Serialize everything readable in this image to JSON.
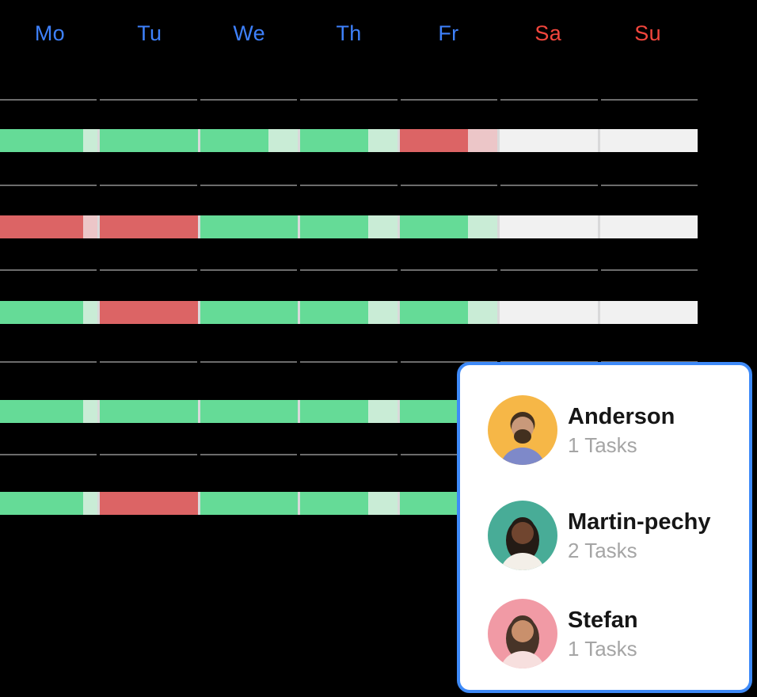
{
  "colors": {
    "background": "#000000",
    "weekday_workday": "#3E81FC",
    "weekday_weekend": "#F2463D",
    "separator": "#6C6C6C",
    "bar_divider": "#D9D9DA",
    "done": "#65DB97",
    "done_light": "#C9ECD6",
    "missed": "#DC6465",
    "missed_light": "#ECC6C8",
    "empty": "#F1F1F1",
    "tooltip_border": "#3E8AF8",
    "tooltip_bg": "#FFFFFF",
    "member_name": "#161616",
    "member_tasks": "#A5A5A5"
  },
  "header": {
    "days": [
      {
        "label": "Mo",
        "kind": "workday"
      },
      {
        "label": "Tu",
        "kind": "workday"
      },
      {
        "label": "We",
        "kind": "workday"
      },
      {
        "label": "Th",
        "kind": "workday"
      },
      {
        "label": "Fr",
        "kind": "workday"
      },
      {
        "label": "Sa",
        "kind": "weekend"
      },
      {
        "label": "Su",
        "kind": "weekend"
      }
    ]
  },
  "weeks": [
    {
      "id": "week-1",
      "days": [
        {
          "day": "Mo",
          "parts": [
            {
              "state": "done",
              "frac": 0.85
            },
            {
              "state": "done_light",
              "frac": 0.15
            }
          ]
        },
        {
          "day": "Tu",
          "parts": [
            {
              "state": "done",
              "frac": 1
            }
          ]
        },
        {
          "day": "We",
          "parts": [
            {
              "state": "done",
              "frac": 0.7
            },
            {
              "state": "done_light",
              "frac": 0.3
            }
          ]
        },
        {
          "day": "Th",
          "parts": [
            {
              "state": "done",
              "frac": 0.7
            },
            {
              "state": "done_light",
              "frac": 0.3
            }
          ]
        },
        {
          "day": "Fr",
          "parts": [
            {
              "state": "missed",
              "frac": 0.7
            },
            {
              "state": "missed_light",
              "frac": 0.3
            }
          ]
        },
        {
          "day": "Sa",
          "parts": [
            {
              "state": "empty",
              "frac": 1
            }
          ]
        },
        {
          "day": "Su",
          "parts": [
            {
              "state": "empty",
              "frac": 1
            }
          ]
        }
      ]
    },
    {
      "id": "week-2",
      "days": [
        {
          "day": "Mo",
          "parts": [
            {
              "state": "missed",
              "frac": 0.85
            },
            {
              "state": "missed_light",
              "frac": 0.15
            }
          ]
        },
        {
          "day": "Tu",
          "parts": [
            {
              "state": "missed",
              "frac": 1
            }
          ]
        },
        {
          "day": "We",
          "parts": [
            {
              "state": "done",
              "frac": 1
            }
          ]
        },
        {
          "day": "Th",
          "parts": [
            {
              "state": "done",
              "frac": 0.7
            },
            {
              "state": "done_light",
              "frac": 0.3
            }
          ]
        },
        {
          "day": "Fr",
          "parts": [
            {
              "state": "done",
              "frac": 0.7
            },
            {
              "state": "done_light",
              "frac": 0.3
            }
          ]
        },
        {
          "day": "Sa",
          "parts": [
            {
              "state": "empty",
              "frac": 1
            }
          ]
        },
        {
          "day": "Su",
          "parts": [
            {
              "state": "empty",
              "frac": 1
            }
          ]
        }
      ]
    },
    {
      "id": "week-3",
      "days": [
        {
          "day": "Mo",
          "parts": [
            {
              "state": "done",
              "frac": 0.85
            },
            {
              "state": "done_light",
              "frac": 0.15
            }
          ]
        },
        {
          "day": "Tu",
          "parts": [
            {
              "state": "missed",
              "frac": 1
            }
          ]
        },
        {
          "day": "We",
          "parts": [
            {
              "state": "done",
              "frac": 1
            }
          ]
        },
        {
          "day": "Th",
          "parts": [
            {
              "state": "done",
              "frac": 0.7
            },
            {
              "state": "done_light",
              "frac": 0.3
            }
          ]
        },
        {
          "day": "Fr",
          "parts": [
            {
              "state": "done",
              "frac": 0.7
            },
            {
              "state": "done_light",
              "frac": 0.3
            }
          ]
        },
        {
          "day": "Sa",
          "parts": [
            {
              "state": "empty",
              "frac": 1
            }
          ]
        },
        {
          "day": "Su",
          "parts": [
            {
              "state": "empty",
              "frac": 1
            }
          ]
        }
      ]
    },
    {
      "id": "week-4",
      "days": [
        {
          "day": "Mo",
          "parts": [
            {
              "state": "done",
              "frac": 0.85
            },
            {
              "state": "done_light",
              "frac": 0.15
            }
          ]
        },
        {
          "day": "Tu",
          "parts": [
            {
              "state": "done",
              "frac": 1
            }
          ]
        },
        {
          "day": "We",
          "parts": [
            {
              "state": "done",
              "frac": 1
            }
          ]
        },
        {
          "day": "Th",
          "parts": [
            {
              "state": "done",
              "frac": 0.7
            },
            {
              "state": "done_light",
              "frac": 0.3
            }
          ]
        },
        {
          "day": "Fr",
          "parts": [
            {
              "state": "done",
              "frac": 0.7
            },
            {
              "state": "done_light",
              "frac": 0.3
            }
          ]
        },
        {
          "day": "Sa",
          "parts": [
            {
              "state": "empty",
              "frac": 1
            }
          ]
        },
        {
          "day": "Su",
          "parts": [
            {
              "state": "empty",
              "frac": 1
            }
          ]
        }
      ]
    },
    {
      "id": "week-5",
      "days": [
        {
          "day": "Mo",
          "parts": [
            {
              "state": "done",
              "frac": 0.85
            },
            {
              "state": "done_light",
              "frac": 0.15
            }
          ]
        },
        {
          "day": "Tu",
          "parts": [
            {
              "state": "missed",
              "frac": 1
            }
          ]
        },
        {
          "day": "We",
          "parts": [
            {
              "state": "done",
              "frac": 1
            }
          ]
        },
        {
          "day": "Th",
          "parts": [
            {
              "state": "done",
              "frac": 0.7
            },
            {
              "state": "done_light",
              "frac": 0.3
            }
          ]
        },
        {
          "day": "Fr",
          "parts": [
            {
              "state": "done",
              "frac": 0.7
            },
            {
              "state": "done_light",
              "frac": 0.3
            }
          ]
        },
        {
          "day": "Sa",
          "parts": [
            {
              "state": "empty",
              "frac": 1
            }
          ]
        },
        {
          "day": "Su",
          "parts": [
            {
              "state": "empty",
              "frac": 1
            }
          ]
        }
      ]
    }
  ],
  "tooltip": {
    "members": [
      {
        "name": "Anderson",
        "tasks": "1 Tasks",
        "avatar": {
          "kind": "bearded-man",
          "bg": "#F6B747",
          "skin": "#C9997A",
          "hair": "#42301F",
          "shirt": "#7E89C9",
          "beard": true,
          "long_hair": false
        }
      },
      {
        "name": "Martin-pechy",
        "tasks": "2 Tasks",
        "avatar": {
          "kind": "smiling-woman",
          "bg": "#48AC97",
          "skin": "#70452F",
          "hair": "#241B15",
          "shirt": "#F3EFE8",
          "beard": false,
          "long_hair": true
        }
      },
      {
        "name": "Stefan",
        "tasks": "1 Tasks",
        "avatar": {
          "kind": "laughing-woman",
          "bg": "#F19AA5",
          "skin": "#C9906C",
          "hair": "#473428",
          "shirt": "#F7DFDE",
          "beard": false,
          "long_hair": true
        }
      }
    ]
  }
}
